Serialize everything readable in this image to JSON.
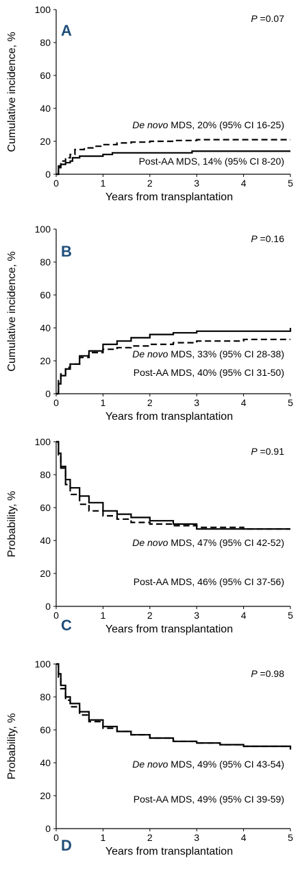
{
  "chart_data": [
    {
      "type": "line",
      "panel_label": "A",
      "panel_label_color": "#1f4e79",
      "p_value": "P =0.07",
      "xlabel": "Years from transplantation",
      "ylabel": "Cumulative incidence, %",
      "xlim": [
        0,
        5
      ],
      "ylim": [
        0,
        100
      ],
      "xticks": [
        "0",
        "1",
        "2",
        "3",
        "4",
        "5"
      ],
      "yticks": [
        "0",
        "20",
        "40",
        "60",
        "80",
        "100"
      ],
      "series": [
        {
          "style": "dashed",
          "label_prefix": "De novo",
          "label_rest": " MDS, 20% (95% CI 16-25)",
          "x": [
            0,
            0.05,
            0.1,
            0.2,
            0.3,
            0.4,
            0.6,
            0.8,
            1.0,
            1.3,
            1.6,
            2.0,
            2.5,
            3.0,
            3.5,
            4.0,
            5.0
          ],
          "y": [
            0,
            5,
            8,
            10,
            12,
            15,
            16,
            17,
            18,
            19,
            19.5,
            20,
            20.5,
            21,
            21,
            21,
            21
          ]
        },
        {
          "style": "solid",
          "label_prefix": "",
          "label_rest": "Post-AA MDS, 14% (95% CI 8-20)",
          "x": [
            0,
            0.05,
            0.1,
            0.2,
            0.3,
            0.35,
            0.5,
            0.8,
            1.0,
            1.2,
            1.5,
            2.0,
            2.9,
            3.0,
            5.0
          ],
          "y": [
            0,
            4,
            6,
            7,
            8,
            10,
            11,
            11,
            12,
            13,
            13,
            13,
            14,
            14,
            14
          ]
        }
      ]
    },
    {
      "type": "line",
      "panel_label": "B",
      "panel_label_color": "#1f4e79",
      "p_value": "P =0.16",
      "xlabel": "Years from transplantation",
      "ylabel": "Cumulative incidence, %",
      "xlim": [
        0,
        5
      ],
      "ylim": [
        0,
        100
      ],
      "xticks": [
        "0",
        "1",
        "2",
        "3",
        "4",
        "5"
      ],
      "yticks": [
        "0",
        "20",
        "40",
        "60",
        "80",
        "100"
      ],
      "series": [
        {
          "style": "solid",
          "label_prefix": "",
          "label_rest": "Post-AA MDS, 40% (95% CI 31-50)",
          "x": [
            0,
            0.05,
            0.1,
            0.2,
            0.3,
            0.5,
            0.7,
            1.0,
            1.3,
            1.6,
            2.0,
            2.5,
            3.0,
            4.0,
            4.95,
            5.0
          ],
          "y": [
            0,
            6,
            11,
            15,
            18,
            23,
            26,
            30,
            32,
            34,
            36,
            37,
            38,
            38,
            38,
            40
          ]
        },
        {
          "style": "dashed",
          "label_prefix": "De novo",
          "label_rest": " MDS, 33% (95% CI 28-38)",
          "x": [
            0,
            0.05,
            0.1,
            0.2,
            0.3,
            0.5,
            0.7,
            1.0,
            1.3,
            1.6,
            2.0,
            2.5,
            3.0,
            4.0,
            5.0
          ],
          "y": [
            0,
            8,
            12,
            16,
            18,
            22,
            25,
            27,
            28,
            29,
            30,
            31,
            32,
            33,
            33
          ]
        }
      ]
    },
    {
      "type": "line",
      "panel_label": "C",
      "panel_label_color": "#1f4e79",
      "p_value": "P =0.91",
      "xlabel": "Years from transplantation",
      "ylabel": "Probability, %",
      "xlim": [
        0,
        5
      ],
      "ylim": [
        0,
        100
      ],
      "xticks": [
        "0",
        "1",
        "2",
        "3",
        "4",
        "5"
      ],
      "yticks": [
        "0",
        "20",
        "40",
        "60",
        "80",
        "100"
      ],
      "series": [
        {
          "style": "solid",
          "label_prefix": "",
          "label_rest": "Post-AA MDS, 46% (95% CI 37-56)",
          "x": [
            0,
            0.05,
            0.1,
            0.2,
            0.3,
            0.5,
            0.7,
            1.0,
            1.3,
            1.6,
            2.0,
            2.5,
            2.9,
            3.0,
            4.0,
            5.0
          ],
          "y": [
            100,
            93,
            85,
            77,
            72,
            67,
            63,
            58,
            56,
            54,
            52,
            50,
            50,
            47,
            47,
            47
          ]
        },
        {
          "style": "dashed",
          "label_prefix": "De novo",
          "label_rest": " MDS, 47% (95% CI 42-52)",
          "x": [
            0,
            0.05,
            0.1,
            0.2,
            0.3,
            0.5,
            0.7,
            1.0,
            1.3,
            1.6,
            2.0,
            2.5,
            3.0,
            4.0,
            5.0
          ],
          "y": [
            100,
            92,
            84,
            74,
            68,
            62,
            58,
            55,
            53,
            51,
            50,
            49,
            48,
            47,
            47
          ]
        }
      ]
    },
    {
      "type": "line",
      "panel_label": "D",
      "panel_label_color": "#1f4e79",
      "p_value": "P =0.98",
      "xlabel": "Years from transplantation",
      "ylabel": "Probability, %",
      "xlim": [
        0,
        5
      ],
      "ylim": [
        0,
        100
      ],
      "xticks": [
        "0",
        "1",
        "2",
        "3",
        "4",
        "5"
      ],
      "yticks": [
        "0",
        "20",
        "40",
        "60",
        "80",
        "100"
      ],
      "series": [
        {
          "style": "solid",
          "label_prefix": "",
          "label_rest": "Post-AA MDS, 49% (95% CI 39-59)",
          "x": [
            0,
            0.05,
            0.1,
            0.2,
            0.3,
            0.5,
            0.7,
            1.0,
            1.3,
            1.6,
            2.0,
            2.5,
            3.0,
            3.5,
            4.0,
            4.95,
            5.0
          ],
          "y": [
            100,
            94,
            87,
            80,
            76,
            71,
            66,
            62,
            59,
            57,
            55,
            53,
            52,
            51,
            50,
            50,
            48
          ]
        },
        {
          "style": "dashed",
          "label_prefix": "De novo",
          "label_rest": " MDS, 49% (95% CI 43-54)",
          "x": [
            0,
            0.05,
            0.1,
            0.2,
            0.3,
            0.5,
            0.7,
            1.0,
            1.3,
            1.6,
            2.0,
            2.5,
            3.0,
            3.5,
            4.0,
            5.0
          ],
          "y": [
            100,
            92,
            85,
            78,
            74,
            69,
            65,
            61,
            59,
            57,
            55,
            53,
            52,
            51,
            50,
            49
          ]
        }
      ]
    }
  ]
}
